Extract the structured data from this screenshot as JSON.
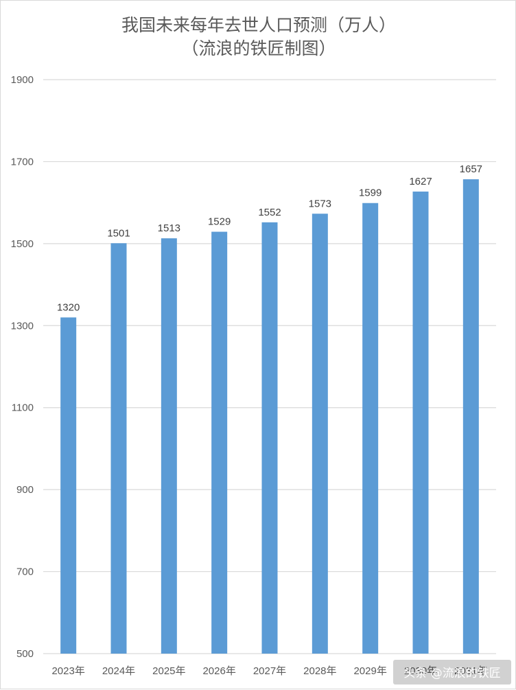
{
  "chart_data": {
    "type": "bar",
    "title": "我国未来每年去世人口预测（万人）",
    "subtitle": "（流浪的铁匠制图）",
    "xlabel": "",
    "ylabel": "",
    "categories": [
      "2023年",
      "2024年",
      "2025年",
      "2026年",
      "2027年",
      "2028年",
      "2029年",
      "2030年",
      "2031年"
    ],
    "values": [
      1320,
      1501,
      1513,
      1529,
      1552,
      1573,
      1599,
      1627,
      1657
    ],
    "ylim": [
      500,
      1900
    ],
    "yticks": [
      500,
      700,
      900,
      1100,
      1300,
      1500,
      1700,
      1900
    ],
    "grid": true,
    "legend": "none",
    "bar_color": "#5b9bd5",
    "grid_color": "#d9d9d9"
  },
  "watermark": {
    "text": "头条 @流浪的铁匠"
  }
}
